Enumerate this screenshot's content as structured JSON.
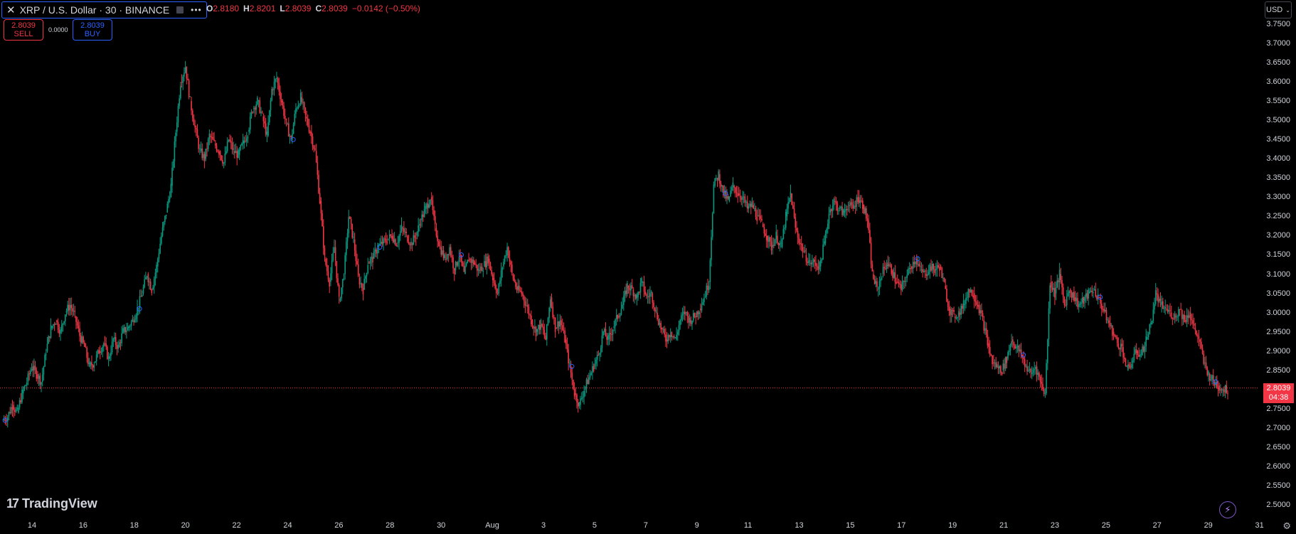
{
  "header": {
    "symbol_title": "XRP / U.S. Dollar · 30 · BINANCE",
    "close_icon": "close-icon",
    "more_icon": "more-dots-icon",
    "ohlc": {
      "o_label": "O",
      "o_value": "2.8180",
      "h_label": "H",
      "h_value": "2.8201",
      "l_label": "L",
      "l_value": "2.8039",
      "c_label": "C",
      "c_value": "2.8039",
      "change": "−0.0142 (−0.50%)"
    },
    "currency": "USD"
  },
  "trade": {
    "sell_price": "2.8039",
    "sell_label": "SELL",
    "spread": "0.0000",
    "buy_price": "2.8039",
    "buy_label": "BUY"
  },
  "price_label": {
    "price": "2.8039",
    "countdown": "04:38"
  },
  "logo_text": "TradingView",
  "colors": {
    "up": "#089981",
    "down": "#f23645",
    "accent": "#2962ff",
    "background": "#000000"
  },
  "chart_data": {
    "type": "line",
    "series": [
      {
        "values": [
          2.72,
          2.73,
          2.76,
          2.74,
          2.79,
          2.82,
          2.86,
          2.84,
          2.82,
          2.9,
          2.96,
          2.98,
          2.95,
          3.0,
          3.02,
          2.99,
          2.94,
          2.91,
          2.86,
          2.87,
          2.9,
          2.92,
          2.88,
          2.93,
          2.91,
          2.95,
          2.96,
          2.98,
          3.01,
          3.05,
          3.1,
          3.06,
          3.12,
          3.2,
          3.26,
          3.33,
          3.47,
          3.6,
          3.64,
          3.55,
          3.48,
          3.42,
          3.4,
          3.46,
          3.44,
          3.42,
          3.39,
          3.45,
          3.42,
          3.41,
          3.44,
          3.47,
          3.53,
          3.55,
          3.51,
          3.46,
          3.58,
          3.61,
          3.55,
          3.49,
          3.45,
          3.53,
          3.56,
          3.51,
          3.47,
          3.42,
          3.29,
          3.14,
          3.08,
          3.17,
          3.03,
          3.1,
          3.25,
          3.19,
          3.09,
          3.06,
          3.13,
          3.14,
          3.17,
          3.18,
          3.19,
          3.2,
          3.18,
          3.22,
          3.2,
          3.18,
          3.2,
          3.24,
          3.27,
          3.3,
          3.22,
          3.17,
          3.14,
          3.17,
          3.11,
          3.15,
          3.1,
          3.14,
          3.13,
          3.11,
          3.12,
          3.14,
          3.09,
          3.05,
          3.12,
          3.17,
          3.1,
          3.06,
          3.05,
          3.02,
          2.98,
          2.95,
          2.97,
          2.93,
          3.04,
          2.96,
          2.98,
          2.93,
          2.86,
          2.79,
          2.76,
          2.8,
          2.83,
          2.86,
          2.89,
          2.95,
          2.93,
          2.96,
          2.99,
          3.02,
          3.07,
          3.06,
          3.04,
          3.08,
          3.04,
          3.05,
          3.0,
          2.96,
          2.93,
          2.95,
          2.93,
          2.98,
          3.0,
          2.98,
          2.99,
          3.01,
          3.04,
          3.08,
          3.33,
          3.36,
          3.31,
          3.29,
          3.33,
          3.31,
          3.3,
          3.27,
          3.28,
          3.25,
          3.23,
          3.2,
          3.17,
          3.2,
          3.17,
          3.25,
          3.31,
          3.22,
          3.18,
          3.15,
          3.13,
          3.13,
          3.12,
          3.18,
          3.26,
          3.29,
          3.27,
          3.26,
          3.28,
          3.27,
          3.3,
          3.28,
          3.24,
          3.1,
          3.06,
          3.1,
          3.13,
          3.11,
          3.08,
          3.06,
          3.09,
          3.12,
          3.14,
          3.11,
          3.1,
          3.12,
          3.11,
          3.12,
          3.07,
          3.01,
          2.99,
          3.0,
          3.02,
          3.06,
          3.05,
          3.02,
          2.98,
          2.92,
          2.87,
          2.86,
          2.85,
          2.88,
          2.93,
          2.91,
          2.89,
          2.86,
          2.84,
          2.86,
          2.82,
          2.79,
          3.08,
          3.05,
          3.1,
          3.02,
          3.06,
          3.04,
          3.02,
          3.03,
          3.05,
          3.06,
          3.04,
          3.01,
          2.98,
          2.95,
          2.92,
          2.91,
          2.85,
          2.87,
          2.9,
          2.89,
          2.93,
          2.97,
          3.05,
          3.02,
          3.01,
          3.0,
          2.99,
          3.01,
          2.98,
          3.0,
          2.96,
          2.93,
          2.87,
          2.84,
          2.82,
          2.81,
          2.8,
          2.8
        ]
      }
    ],
    "ylim": [
      2.5,
      3.75
    ],
    "x_ticks": [
      "14",
      "16",
      "18",
      "20",
      "22",
      "24",
      "26",
      "28",
      "30",
      "Aug",
      "3",
      "5",
      "7",
      "9",
      "11",
      "13",
      "15",
      "17",
      "19",
      "21",
      "23",
      "25",
      "27",
      "29",
      "31"
    ],
    "y_ticks": [
      "3.7500",
      "3.7000",
      "3.6500",
      "3.6000",
      "3.5500",
      "3.5000",
      "3.4500",
      "3.4000",
      "3.3500",
      "3.3000",
      "3.2500",
      "3.2000",
      "3.1500",
      "3.1000",
      "3.0500",
      "3.0000",
      "2.9500",
      "2.9000",
      "2.8500",
      "2.8000",
      "2.7500",
      "2.7000",
      "2.6500",
      "2.6000",
      "2.5500",
      "2.5000"
    ],
    "last_price": 2.8039,
    "grid": false
  }
}
